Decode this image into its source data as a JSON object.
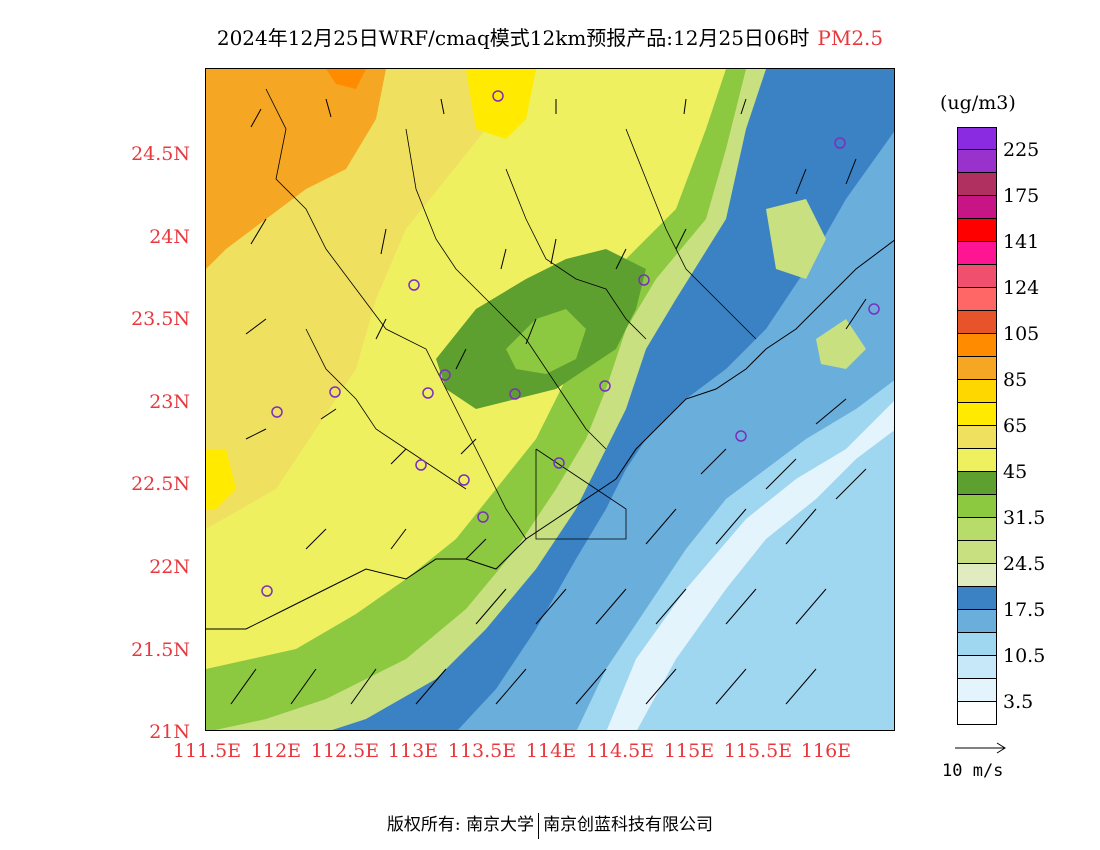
{
  "title": {
    "main": "2024年12月25日WRF/cmaq模式12km预报产品:12月25日06时",
    "variable": "PM2.5"
  },
  "y_ticks": [
    "24.5N",
    "24N",
    "23.5N",
    "23N",
    "22.5N",
    "22N",
    "21.5N",
    "21N"
  ],
  "x_ticks": [
    "111.5E",
    "112E",
    "112.5E",
    "113E",
    "113.5E",
    "114E",
    "114.5E",
    "115E",
    "115.5E",
    "116E"
  ],
  "colorbar": {
    "units": "(ug/m3)",
    "labels": [
      "225",
      "175",
      "141",
      "124",
      "105",
      "85",
      "65",
      "45",
      "31.5",
      "24.5",
      "17.5",
      "10.5",
      "3.5"
    ],
    "colors": [
      "#8a2be2",
      "#9932cc",
      "#b03060",
      "#c71585",
      "#ff0000",
      "#ff1493",
      "#f0506e",
      "#ff6666",
      "#e8542a",
      "#ff8c00",
      "#f5a623",
      "#ffd700",
      "#ffea00",
      "#f0e060",
      "#eef060",
      "#5ea030",
      "#8cc840",
      "#b8dc6a",
      "#c8e080",
      "#e0ecc0",
      "#3b82c4",
      "#6aaedc",
      "#9fd6f0",
      "#c6e8f8",
      "#e4f4fc",
      "#ffffff"
    ]
  },
  "wind_reference": {
    "label": "10 m/s"
  },
  "footer": {
    "copyright": "版权所有:",
    "org1": "南京大学",
    "org2": "南京创蓝科技有限公司"
  },
  "legend_colors": {
    "ocean_clean": "#e4f4fc",
    "ocean_low": "#9fd6f0",
    "ocean_mid": "#6aaedc",
    "ocean_dark": "#3b82c4",
    "coast_green_light": "#c8e080",
    "coast_green": "#8cc840",
    "land_green_dark": "#5ea030",
    "land_yellow_light": "#eef060",
    "land_yellow": "#f0e060",
    "land_yellow_bright": "#ffea00",
    "land_orange": "#f5a623",
    "land_orange_dark": "#ff8c00",
    "station_marker": "#7b2fbe",
    "tick_label": "#e8383d"
  }
}
